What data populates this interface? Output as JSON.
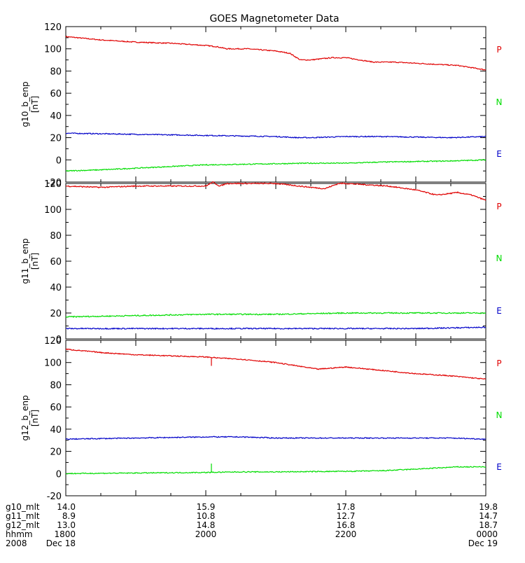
{
  "title": "GOES Magnetometer Data",
  "colors": {
    "P": "#e00000",
    "N": "#00dd00",
    "E": "#0000c8",
    "axis": "#000000"
  },
  "chart_data": [
    {
      "type": "line",
      "ylabel": "g10_b_enp",
      "yunit": "[nT]",
      "ylim": [
        -20,
        120
      ],
      "yticks": [
        -20,
        0,
        20,
        40,
        60,
        80,
        100,
        120
      ],
      "x_hours": [
        18,
        19,
        20,
        21,
        22,
        23,
        24
      ],
      "legend": [
        "P",
        "N",
        "E"
      ],
      "series": [
        {
          "name": "P",
          "color_key": "P",
          "x": [
            18.0,
            18.5,
            19.0,
            19.5,
            20.0,
            20.15,
            20.3,
            20.6,
            21.0,
            21.2,
            21.35,
            21.5,
            21.8,
            22.0,
            22.2,
            22.4,
            22.7,
            23.0,
            23.3,
            23.6,
            23.8,
            24.0
          ],
          "values": [
            111,
            108,
            106,
            105,
            103,
            102,
            100,
            100,
            98,
            96,
            90,
            90,
            92,
            92,
            90,
            88,
            88,
            87,
            86,
            85,
            83,
            81
          ]
        },
        {
          "name": "E",
          "color_key": "E",
          "x": [
            18.0,
            18.5,
            19.0,
            19.5,
            20.0,
            20.5,
            21.0,
            21.3,
            21.5,
            22.0,
            22.5,
            23.0,
            23.5,
            24.0
          ],
          "values": [
            24,
            23.5,
            23,
            22.5,
            22,
            21.5,
            21,
            20,
            20,
            21,
            21,
            20.5,
            20,
            21
          ]
        },
        {
          "name": "N",
          "color_key": "N",
          "x": [
            18.0,
            18.5,
            19.0,
            19.5,
            20.0,
            20.5,
            21.0,
            21.5,
            22.0,
            22.5,
            23.0,
            23.5,
            24.0
          ],
          "values": [
            -10,
            -9,
            -7.5,
            -6,
            -4.5,
            -4,
            -3.5,
            -3,
            -3,
            -2,
            -1.5,
            -1,
            0
          ]
        }
      ]
    },
    {
      "type": "line",
      "ylabel": "g11_b_enp",
      "yunit": "[nT]",
      "ylim": [
        0,
        120
      ],
      "yticks": [
        0,
        20,
        40,
        60,
        80,
        100,
        120
      ],
      "x_hours": [
        18,
        19,
        20,
        21,
        22,
        23,
        24
      ],
      "legend": [
        "P",
        "N",
        "E"
      ],
      "series": [
        {
          "name": "P",
          "color_key": "P",
          "x": [
            18.0,
            18.5,
            19.0,
            19.5,
            20.0,
            20.1,
            20.2,
            20.3,
            20.6,
            21.0,
            21.5,
            21.7,
            21.9,
            22.0,
            22.3,
            22.6,
            23.0,
            23.3,
            23.6,
            23.8,
            24.0
          ],
          "values": [
            118,
            117,
            118,
            118,
            118,
            121,
            118,
            120,
            120,
            120,
            117,
            116,
            120,
            120,
            119,
            118,
            115,
            111,
            113,
            111,
            107
          ]
        },
        {
          "name": "N",
          "color_key": "N",
          "x": [
            18.0,
            18.5,
            19.0,
            20.0,
            21.0,
            22.0,
            23.0,
            24.0
          ],
          "values": [
            17,
            17.5,
            18,
            19,
            19,
            20,
            20,
            20
          ]
        },
        {
          "name": "E",
          "color_key": "E",
          "x": [
            18.0,
            18.5,
            19.0,
            20.0,
            21.0,
            21.5,
            22.0,
            23.0,
            23.5,
            24.0
          ],
          "values": [
            8,
            8,
            8,
            8,
            8,
            8,
            8,
            8,
            8.5,
            9
          ]
        }
      ]
    },
    {
      "type": "line",
      "ylabel": "g12_b_enp",
      "yunit": "[nT]",
      "ylim": [
        -20,
        120
      ],
      "yticks": [
        -20,
        0,
        20,
        40,
        60,
        80,
        100,
        120
      ],
      "x_hours": [
        18,
        19,
        20,
        21,
        22,
        23,
        24
      ],
      "legend": [
        "P",
        "N",
        "E"
      ],
      "series": [
        {
          "name": "P",
          "color_key": "P",
          "x": [
            18.0,
            18.5,
            19.0,
            19.5,
            20.0,
            20.2,
            20.5,
            21.0,
            21.3,
            21.6,
            22.0,
            22.5,
            23.0,
            23.5,
            24.0
          ],
          "values": [
            112,
            109,
            107,
            106,
            105,
            104,
            103,
            100,
            97,
            94,
            96,
            93,
            90,
            88,
            85
          ]
        },
        {
          "name": "E",
          "color_key": "E",
          "x": [
            18.0,
            19.0,
            20.0,
            20.5,
            21.0,
            22.0,
            23.0,
            23.5,
            24.0
          ],
          "values": [
            31,
            32,
            33,
            33,
            32,
            32,
            32,
            32,
            31
          ]
        },
        {
          "name": "N",
          "color_key": "N",
          "x": [
            18.0,
            19.0,
            20.0,
            20.5,
            21.0,
            22.0,
            22.5,
            23.0,
            23.3,
            23.6,
            24.0
          ],
          "values": [
            0,
            0.5,
            1,
            1.5,
            1.5,
            2,
            2.5,
            4,
            5,
            6,
            6
          ]
        }
      ]
    }
  ],
  "footer": {
    "rows": [
      {
        "label": "g10_mlt",
        "values": [
          "14.0",
          "15.9",
          "17.8",
          "19.8"
        ]
      },
      {
        "label": "g11_mlt",
        "values": [
          "8.9",
          "10.8",
          "12.7",
          "14.7"
        ]
      },
      {
        "label": "g12_mlt",
        "values": [
          "13.0",
          "14.8",
          "16.8",
          "18.7"
        ]
      },
      {
        "label": "hhmm",
        "values": [
          "1800",
          "2000",
          "2200",
          "0000"
        ]
      },
      {
        "label": "2008",
        "values": [
          "Dec 18",
          "",
          "",
          "Dec 19"
        ]
      }
    ]
  }
}
